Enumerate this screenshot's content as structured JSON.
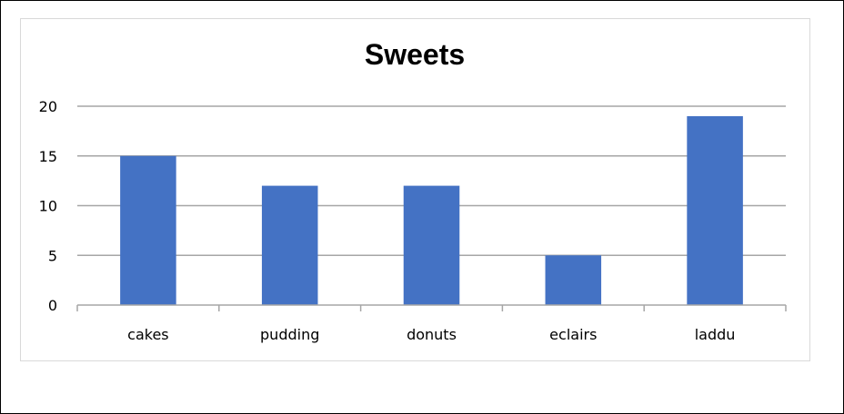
{
  "chart_data": {
    "type": "bar",
    "title": "Sweets",
    "categories": [
      "cakes",
      "pudding",
      "donuts",
      "eclairs",
      "laddu"
    ],
    "values": [
      15,
      12,
      12,
      5,
      19
    ],
    "y_ticks": [
      0,
      5,
      10,
      15,
      20
    ],
    "ylim": [
      0,
      20
    ],
    "xlabel": "",
    "ylabel": "",
    "grid": true,
    "legend": "none",
    "bar_color": "#4472c4",
    "gridline_color": "#a6a6a6"
  }
}
